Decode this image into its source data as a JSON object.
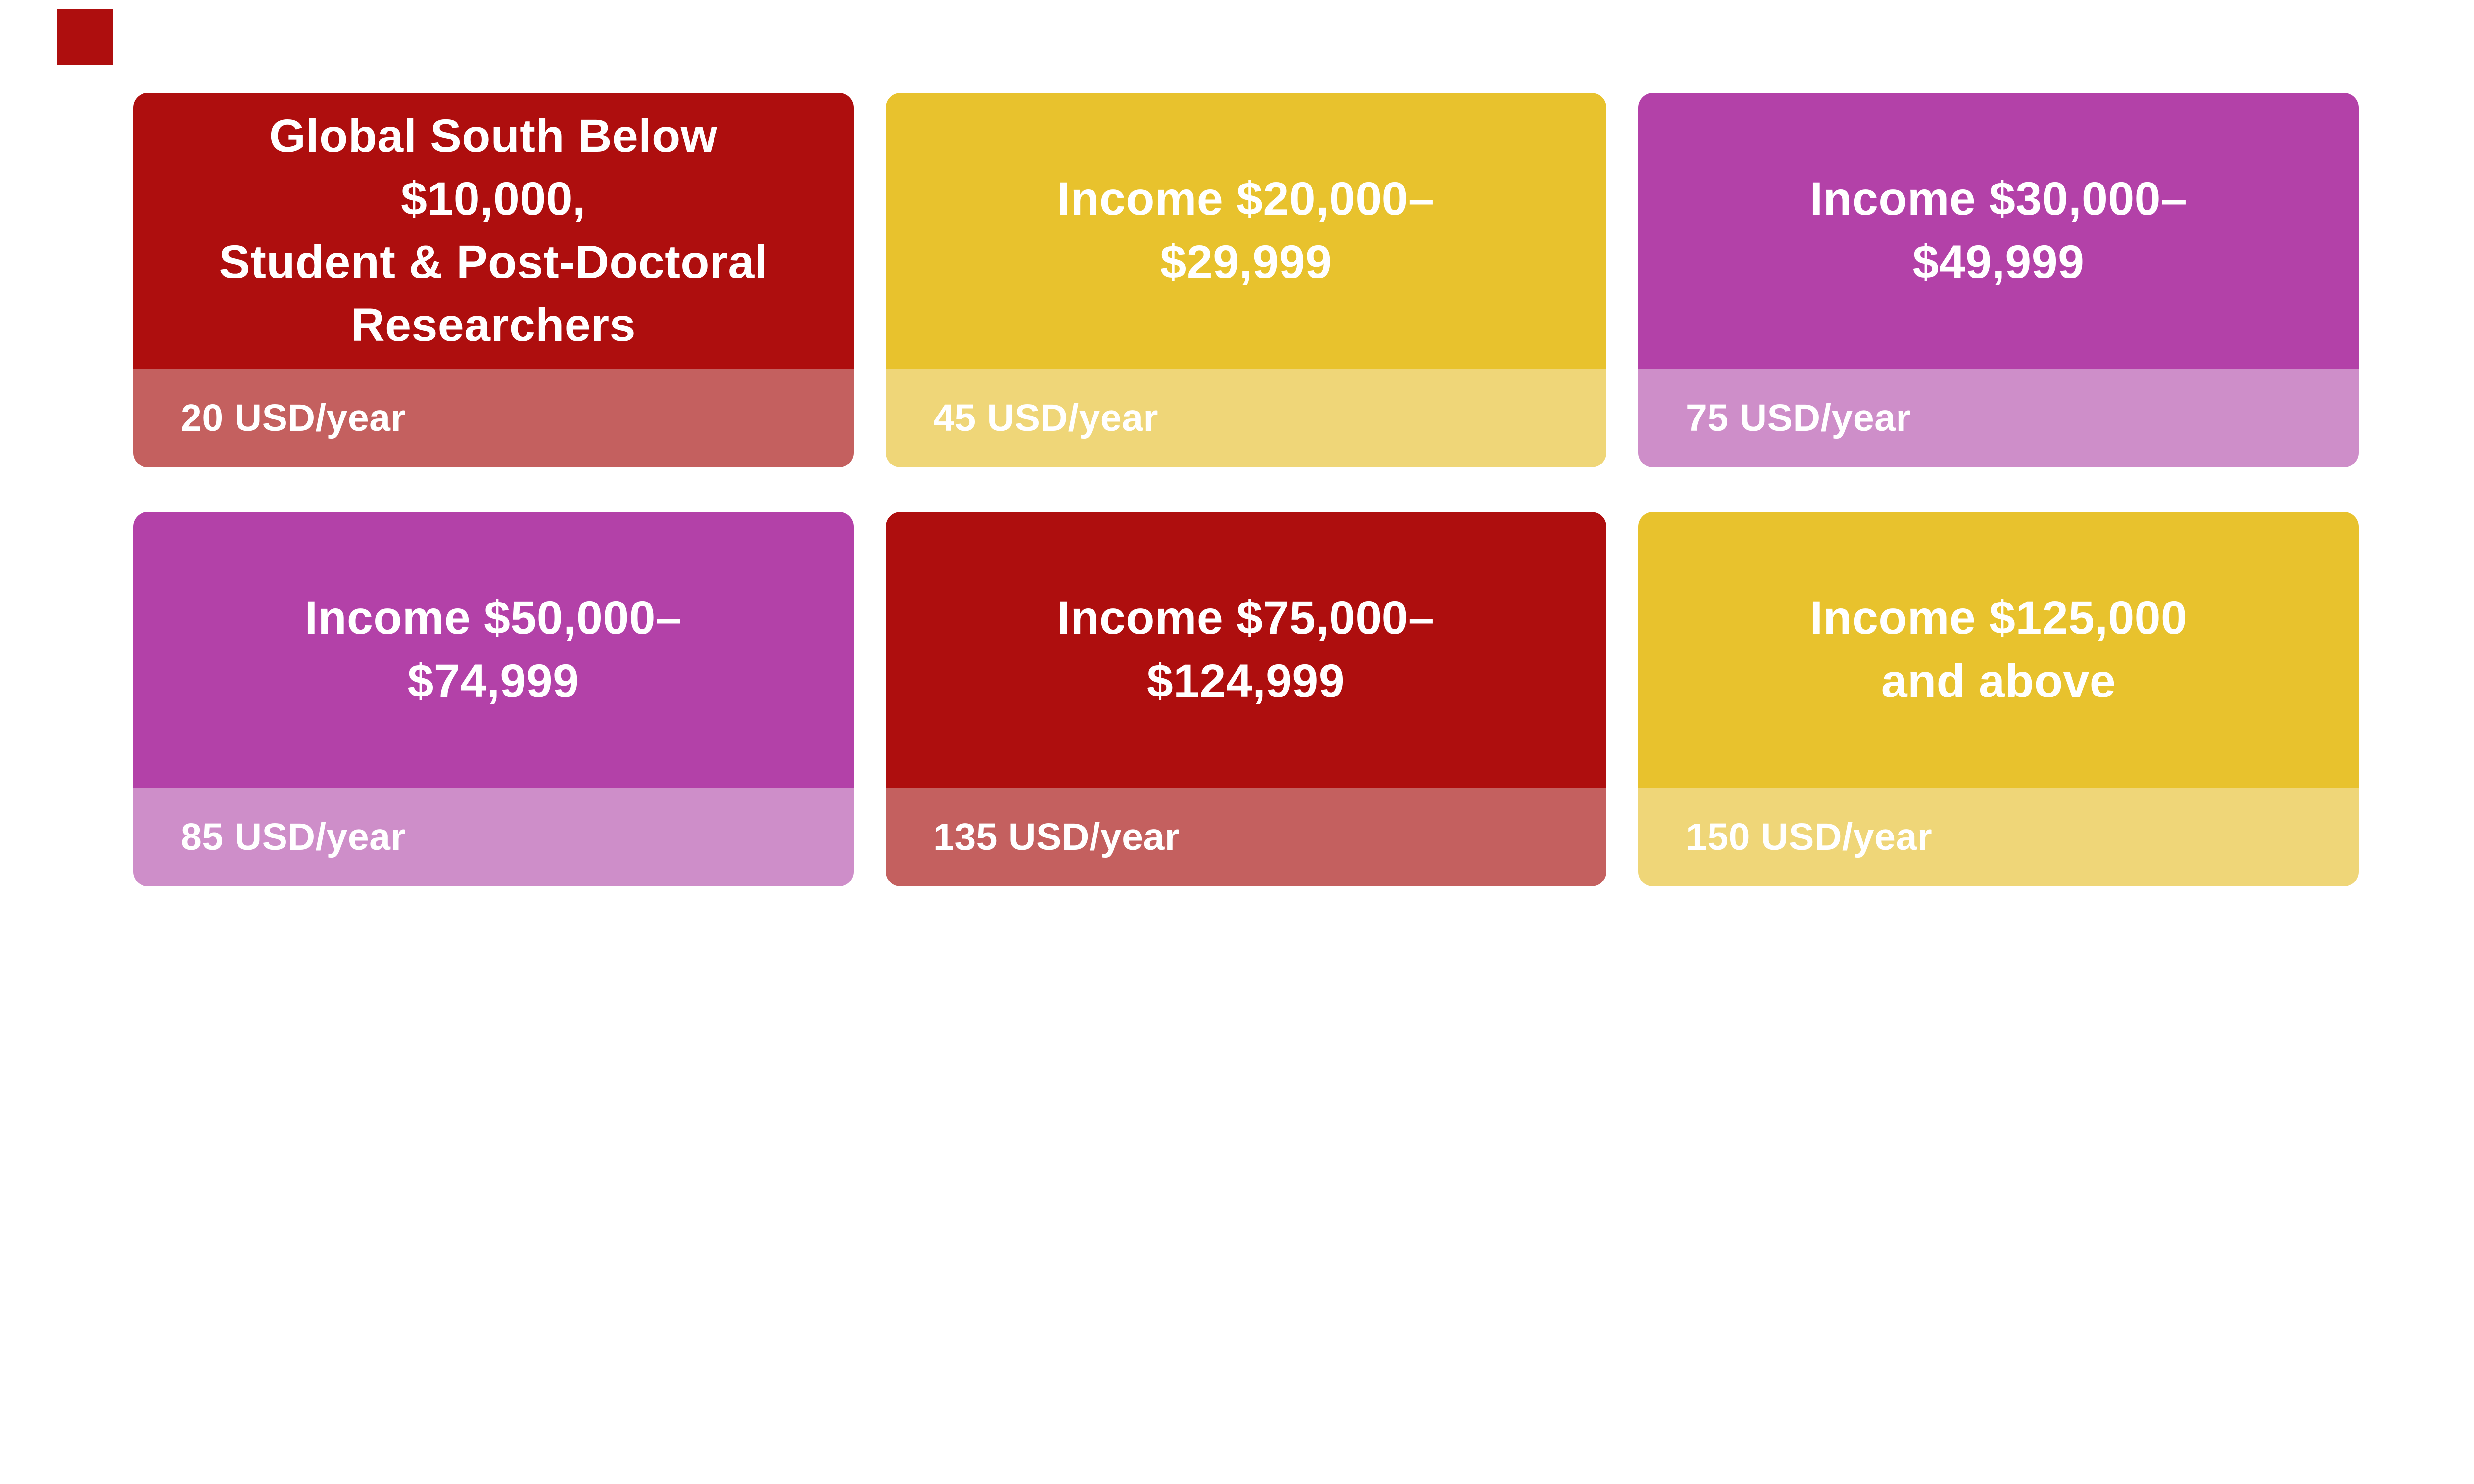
{
  "page": {
    "background": "#ffffff",
    "text_color": "#ffffff"
  },
  "corner_square": {
    "color": "#ae0e0e"
  },
  "cards": [
    {
      "title_lines": [
        "Global South Below",
        "$10,000,",
        "Student & Post-Doctoral",
        "Researchers"
      ],
      "price": "20 USD/year",
      "header_color": "#ae0e0e",
      "footer_color": "#c4605f"
    },
    {
      "title_lines": [
        "Income $20,000–",
        "$29,999"
      ],
      "price": "45 USD/year",
      "header_color": "#e8c22d",
      "footer_color": "#efd678"
    },
    {
      "title_lines": [
        "Income $30,000–",
        "$49,999"
      ],
      "price": "75 USD/year",
      "header_color": "#b341a8",
      "footer_color": "#ce8ec9"
    },
    {
      "title_lines": [
        "Income $50,000–",
        "$74,999"
      ],
      "price": "85 USD/year",
      "header_color": "#b341a8",
      "footer_color": "#ce8ec9"
    },
    {
      "title_lines": [
        "Income $75,000–",
        "$124,999"
      ],
      "price": "135 USD/year",
      "header_color": "#ae0e0e",
      "footer_color": "#c4605f"
    },
    {
      "title_lines": [
        "Income $125,000",
        "and above"
      ],
      "price": "150 USD/year",
      "header_color": "#e8c22d",
      "footer_color": "#efd678"
    }
  ]
}
